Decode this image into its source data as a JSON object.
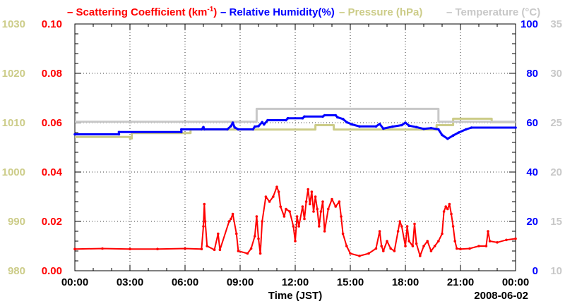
{
  "chart_data": {
    "type": "line",
    "legend": [
      {
        "prefix": "–",
        "text": "Scattering Coefficient (km",
        "sup": "-1",
        "suffix": ")",
        "color": "#ff0000"
      },
      {
        "prefix": "–",
        "text": "Relative Humidity(%)",
        "color": "#0000ff"
      },
      {
        "prefix": "–",
        "text": "Pressure (hPa)",
        "color": "#cccc88"
      },
      {
        "prefix": "–",
        "text": "Temperature (°C)",
        "color": "#c8c8c8"
      }
    ],
    "xlabel": "Time (JST)",
    "date_label": "2008-06-02",
    "x_range": [
      0,
      24
    ],
    "x_ticks": [
      0,
      3,
      6,
      9,
      12,
      15,
      18,
      21,
      24
    ],
    "x_tick_labels": [
      "00:00",
      "03:00",
      "06:00",
      "09:00",
      "12:00",
      "15:00",
      "18:00",
      "21:00",
      "00:00"
    ],
    "grid": true,
    "axes": {
      "pressure": {
        "range": [
          980,
          1030
        ],
        "ticks": [
          "980",
          "990",
          "1000",
          "1010",
          "1020",
          "1030"
        ],
        "color": "#cccc88"
      },
      "scattering": {
        "range": [
          0.0,
          0.1
        ],
        "ticks": [
          "0.00",
          "0.02",
          "0.04",
          "0.06",
          "0.08",
          "0.10"
        ],
        "color": "#ff0000"
      },
      "humidity": {
        "range": [
          0,
          100
        ],
        "ticks": [
          "0",
          "20",
          "40",
          "60",
          "80",
          "100"
        ],
        "color": "#0000ff"
      },
      "temperature": {
        "range": [
          10,
          35
        ],
        "ticks": [
          "10",
          "15",
          "20",
          "25",
          "30",
          "35"
        ],
        "color": "#c8c8c8"
      }
    },
    "series": [
      {
        "name": "Pressure (hPa)",
        "axis": "pressure",
        "color": "#cccc88",
        "step": true,
        "points": [
          [
            0,
            1007.1
          ],
          [
            3.0,
            1007.1
          ],
          [
            3.0,
            1006.8
          ],
          [
            3.1,
            1006.8
          ],
          [
            3.1,
            1007.9
          ],
          [
            6.3,
            1007.9
          ],
          [
            6.3,
            1008.6
          ],
          [
            13.1,
            1008.6
          ],
          [
            13.1,
            1009.5
          ],
          [
            14.1,
            1009.5
          ],
          [
            14.1,
            1008.6
          ],
          [
            19.7,
            1008.6
          ],
          [
            19.7,
            1009.5
          ],
          [
            20.6,
            1009.5
          ],
          [
            20.6,
            1010.8
          ],
          [
            22.7,
            1010.8
          ],
          [
            22.7,
            1010.1
          ],
          [
            24,
            1010.1
          ]
        ]
      },
      {
        "name": "Temperature (°C)",
        "axis": "temperature",
        "color": "#c8c8c8",
        "step": true,
        "points": [
          [
            0,
            25.1
          ],
          [
            9.9,
            25.1
          ],
          [
            9.9,
            26.4
          ],
          [
            19.8,
            26.4
          ],
          [
            19.8,
            25.1
          ],
          [
            24,
            25.1
          ]
        ]
      },
      {
        "name": "Relative Humidity(%)",
        "axis": "humidity",
        "color": "#0000ff",
        "step": false,
        "points": [
          [
            0,
            55.3
          ],
          [
            2.4,
            55.3
          ],
          [
            2.4,
            56.2
          ],
          [
            5.8,
            56.2
          ],
          [
            5.8,
            57.3
          ],
          [
            6.9,
            57.3
          ],
          [
            7.0,
            58.2
          ],
          [
            7.05,
            57.3
          ],
          [
            8.3,
            57.3
          ],
          [
            8.5,
            58.6
          ],
          [
            8.6,
            60.0
          ],
          [
            8.7,
            58.1
          ],
          [
            8.9,
            57.3
          ],
          [
            9.7,
            57.3
          ],
          [
            9.8,
            58.4
          ],
          [
            10.0,
            58.6
          ],
          [
            10.2,
            60.2
          ],
          [
            10.3,
            59.3
          ],
          [
            10.5,
            61.0
          ],
          [
            11.5,
            61.0
          ],
          [
            11.6,
            61.8
          ],
          [
            12.4,
            61.8
          ],
          [
            12.5,
            62.5
          ],
          [
            13.5,
            62.5
          ],
          [
            13.6,
            63.0
          ],
          [
            14.2,
            63.0
          ],
          [
            14.3,
            62.2
          ],
          [
            14.6,
            61.5
          ],
          [
            14.8,
            60.2
          ],
          [
            15.1,
            59.3
          ],
          [
            15.5,
            58.5
          ],
          [
            16.4,
            58.5
          ],
          [
            16.6,
            59.5
          ],
          [
            16.8,
            57.6
          ],
          [
            17.3,
            58.4
          ],
          [
            17.8,
            59.0
          ],
          [
            18.0,
            60.0
          ],
          [
            18.2,
            58.8
          ],
          [
            18.6,
            58.2
          ],
          [
            19.0,
            57.5
          ],
          [
            19.4,
            57.8
          ],
          [
            19.8,
            57.3
          ],
          [
            20.0,
            55.0
          ],
          [
            20.3,
            53.5
          ],
          [
            20.6,
            54.8
          ],
          [
            20.9,
            56.0
          ],
          [
            21.3,
            57.3
          ],
          [
            21.6,
            58.0
          ],
          [
            24,
            58.0
          ]
        ]
      },
      {
        "name": "Scattering Coefficient (km-1)",
        "axis": "scattering",
        "color": "#ff0000",
        "step": false,
        "points": [
          [
            0,
            0.0088
          ],
          [
            1.5,
            0.009
          ],
          [
            3.0,
            0.0088
          ],
          [
            4.5,
            0.0088
          ],
          [
            6.0,
            0.009
          ],
          [
            6.9,
            0.0088
          ],
          [
            7.0,
            0.018
          ],
          [
            7.05,
            0.027
          ],
          [
            7.1,
            0.02
          ],
          [
            7.2,
            0.01
          ],
          [
            7.6,
            0.0085
          ],
          [
            7.8,
            0.015
          ],
          [
            7.9,
            0.0085
          ],
          [
            8.4,
            0.02
          ],
          [
            8.5,
            0.021
          ],
          [
            8.6,
            0.023
          ],
          [
            8.8,
            0.015
          ],
          [
            8.9,
            0.008
          ],
          [
            9.4,
            0.007
          ],
          [
            9.6,
            0.009
          ],
          [
            9.8,
            0.014
          ],
          [
            9.9,
            0.022
          ],
          [
            10.0,
            0.013
          ],
          [
            10.1,
            0.007
          ],
          [
            10.2,
            0.02
          ],
          [
            10.4,
            0.03
          ],
          [
            10.6,
            0.028
          ],
          [
            10.8,
            0.03
          ],
          [
            11.0,
            0.034
          ],
          [
            11.1,
            0.032
          ],
          [
            11.2,
            0.026
          ],
          [
            11.4,
            0.022
          ],
          [
            11.5,
            0.025
          ],
          [
            11.7,
            0.024
          ],
          [
            11.9,
            0.018
          ],
          [
            12.0,
            0.012
          ],
          [
            12.1,
            0.022
          ],
          [
            12.2,
            0.018
          ],
          [
            12.4,
            0.026
          ],
          [
            12.5,
            0.021
          ],
          [
            12.6,
            0.028
          ],
          [
            12.7,
            0.033
          ],
          [
            12.8,
            0.027
          ],
          [
            12.9,
            0.032
          ],
          [
            13.0,
            0.024
          ],
          [
            13.1,
            0.03
          ],
          [
            13.2,
            0.025
          ],
          [
            13.3,
            0.018
          ],
          [
            13.4,
            0.024
          ],
          [
            13.5,
            0.028
          ],
          [
            13.6,
            0.016
          ],
          [
            13.8,
            0.025
          ],
          [
            14.0,
            0.029
          ],
          [
            14.2,
            0.026
          ],
          [
            14.4,
            0.028
          ],
          [
            14.5,
            0.022
          ],
          [
            14.6,
            0.015
          ],
          [
            14.8,
            0.01
          ],
          [
            15.0,
            0.007
          ],
          [
            15.5,
            0.006
          ],
          [
            16.0,
            0.007
          ],
          [
            16.4,
            0.009
          ],
          [
            16.6,
            0.016
          ],
          [
            16.7,
            0.01
          ],
          [
            16.8,
            0.008
          ],
          [
            17.0,
            0.012
          ],
          [
            17.2,
            0.009
          ],
          [
            17.4,
            0.008
          ],
          [
            17.6,
            0.016
          ],
          [
            17.7,
            0.02
          ],
          [
            17.8,
            0.018
          ],
          [
            18.0,
            0.01
          ],
          [
            18.1,
            0.018
          ],
          [
            18.2,
            0.012
          ],
          [
            18.4,
            0.01
          ],
          [
            18.5,
            0.019
          ],
          [
            18.6,
            0.011
          ],
          [
            18.8,
            0.006
          ],
          [
            19.0,
            0.01
          ],
          [
            19.2,
            0.012
          ],
          [
            19.4,
            0.008
          ],
          [
            19.6,
            0.01
          ],
          [
            19.8,
            0.012
          ],
          [
            20.0,
            0.015
          ],
          [
            20.1,
            0.024
          ],
          [
            20.2,
            0.026
          ],
          [
            20.3,
            0.025
          ],
          [
            20.4,
            0.027
          ],
          [
            20.5,
            0.023
          ],
          [
            20.6,
            0.018
          ],
          [
            20.7,
            0.012
          ],
          [
            20.8,
            0.009
          ],
          [
            21.0,
            0.0088
          ],
          [
            21.5,
            0.009
          ],
          [
            22.0,
            0.01
          ],
          [
            22.4,
            0.01
          ],
          [
            22.5,
            0.016
          ],
          [
            22.6,
            0.012
          ],
          [
            23.0,
            0.0115
          ],
          [
            23.5,
            0.0125
          ],
          [
            24,
            0.013
          ]
        ]
      }
    ]
  }
}
